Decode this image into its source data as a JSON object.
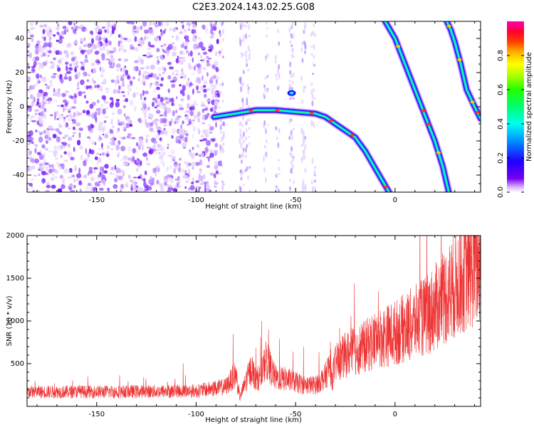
{
  "title": "C2E3.2024.143.02.25.G08",
  "chart_data": [
    {
      "type": "heatmap",
      "xlabel": "Height of straight line (km)",
      "ylabel": "Frequency (Hz)",
      "xlim": [
        -185,
        43
      ],
      "ylim": [
        -50,
        50
      ],
      "x_ticks": [
        "-150",
        "-100",
        "-50",
        "0"
      ],
      "y_ticks": [
        "-40",
        "-20",
        "0",
        "20",
        "40"
      ],
      "colorbar": {
        "label": "Normalized spectral amplitude",
        "range": [
          0,
          1
        ],
        "ticks": [
          "0.0",
          "0.2",
          "0.4",
          "0.6",
          "0.8"
        ],
        "colormap": "gist_ncar",
        "min_color": "#ffffff",
        "max_color": "#ff00aa"
      },
      "traces": [
        {
          "desc": "main curved trace",
          "x": [
            -91,
            -80,
            -70,
            -60,
            -50,
            -40,
            -35,
            -30,
            -25,
            -20,
            -15,
            -10,
            -5,
            -3
          ],
          "y": [
            -6,
            -4,
            -2,
            -2,
            -3,
            -4,
            -6,
            -10,
            -14,
            -18,
            -26,
            -36,
            -46,
            -50
          ]
        },
        {
          "desc": "diagonal trace 1",
          "x": [
            -5,
            0,
            5,
            10,
            15,
            20,
            24,
            27
          ],
          "y": [
            50,
            40,
            25,
            10,
            -5,
            -20,
            -35,
            -50
          ]
        },
        {
          "desc": "diagonal trace 2",
          "x": [
            26,
            28,
            30,
            33,
            36,
            40,
            43
          ],
          "y": [
            50,
            45,
            38,
            25,
            10,
            0,
            -7
          ]
        }
      ]
    },
    {
      "type": "line",
      "xlabel": "Height of straight line (km)",
      "ylabel": "SNR (10 * v/v)",
      "xlim": [
        -185,
        43
      ],
      "ylim": [
        0,
        2000
      ],
      "x_ticks": [
        "-150",
        "-100",
        "-50",
        "0"
      ],
      "y_ticks": [
        "500",
        "1000",
        "1500",
        "2000"
      ],
      "color": "#ee3333",
      "series": [
        {
          "x": [
            -185,
            -150,
            -120,
            -100,
            -85,
            -80,
            -78,
            -75,
            -72,
            -70,
            -67,
            -65,
            -60,
            -55,
            -50,
            -45,
            -40,
            -35,
            -33,
            -32,
            -30,
            -25,
            -20,
            -15,
            -10,
            -5,
            0,
            5,
            10,
            15,
            20,
            25,
            30,
            35,
            40,
            43
          ],
          "y": [
            170,
            170,
            175,
            180,
            230,
            380,
            100,
            300,
            450,
            300,
            380,
            550,
            330,
            320,
            280,
            250,
            250,
            350,
            480,
            300,
            500,
            600,
            650,
            700,
            780,
            820,
            860,
            920,
            980,
            1050,
            1150,
            1280,
            1420,
            1550,
            1650,
            1700
          ]
        }
      ]
    }
  ]
}
